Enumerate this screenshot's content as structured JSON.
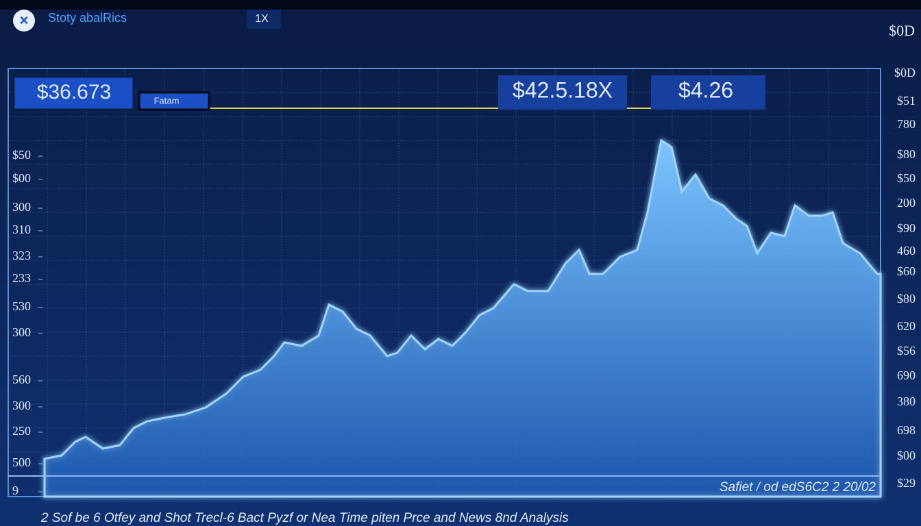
{
  "header": {
    "title": "Stoty abalRics",
    "zoom": "1X",
    "corner_value": "$0D"
  },
  "price_boxes": {
    "left_price": "$36.673",
    "left_tag": "Fatam",
    "mid_price": "$42.5.18X",
    "right_price": "$4.26"
  },
  "left_axis": [
    "$50",
    "$00",
    "300",
    "310",
    "323",
    "233",
    "530",
    "300",
    "560",
    "300",
    "250",
    "500",
    "9"
  ],
  "right_axis": [
    "$0D",
    "$51",
    "780",
    "$80",
    "$50",
    "200",
    "$90",
    "460",
    "$60",
    "$80",
    "620",
    "$56",
    "690",
    "380",
    "698",
    "$00",
    "$29"
  ],
  "footer": {
    "timestamp": "Safiet / od edS6C2  2  20/02",
    "caption": "2 Sof be  6  Otfey and  Shot  Trecl-6 Bact  Pyzf  or  Nea  Time  piten  Prce   and   News  8nd Analysis"
  }
}
